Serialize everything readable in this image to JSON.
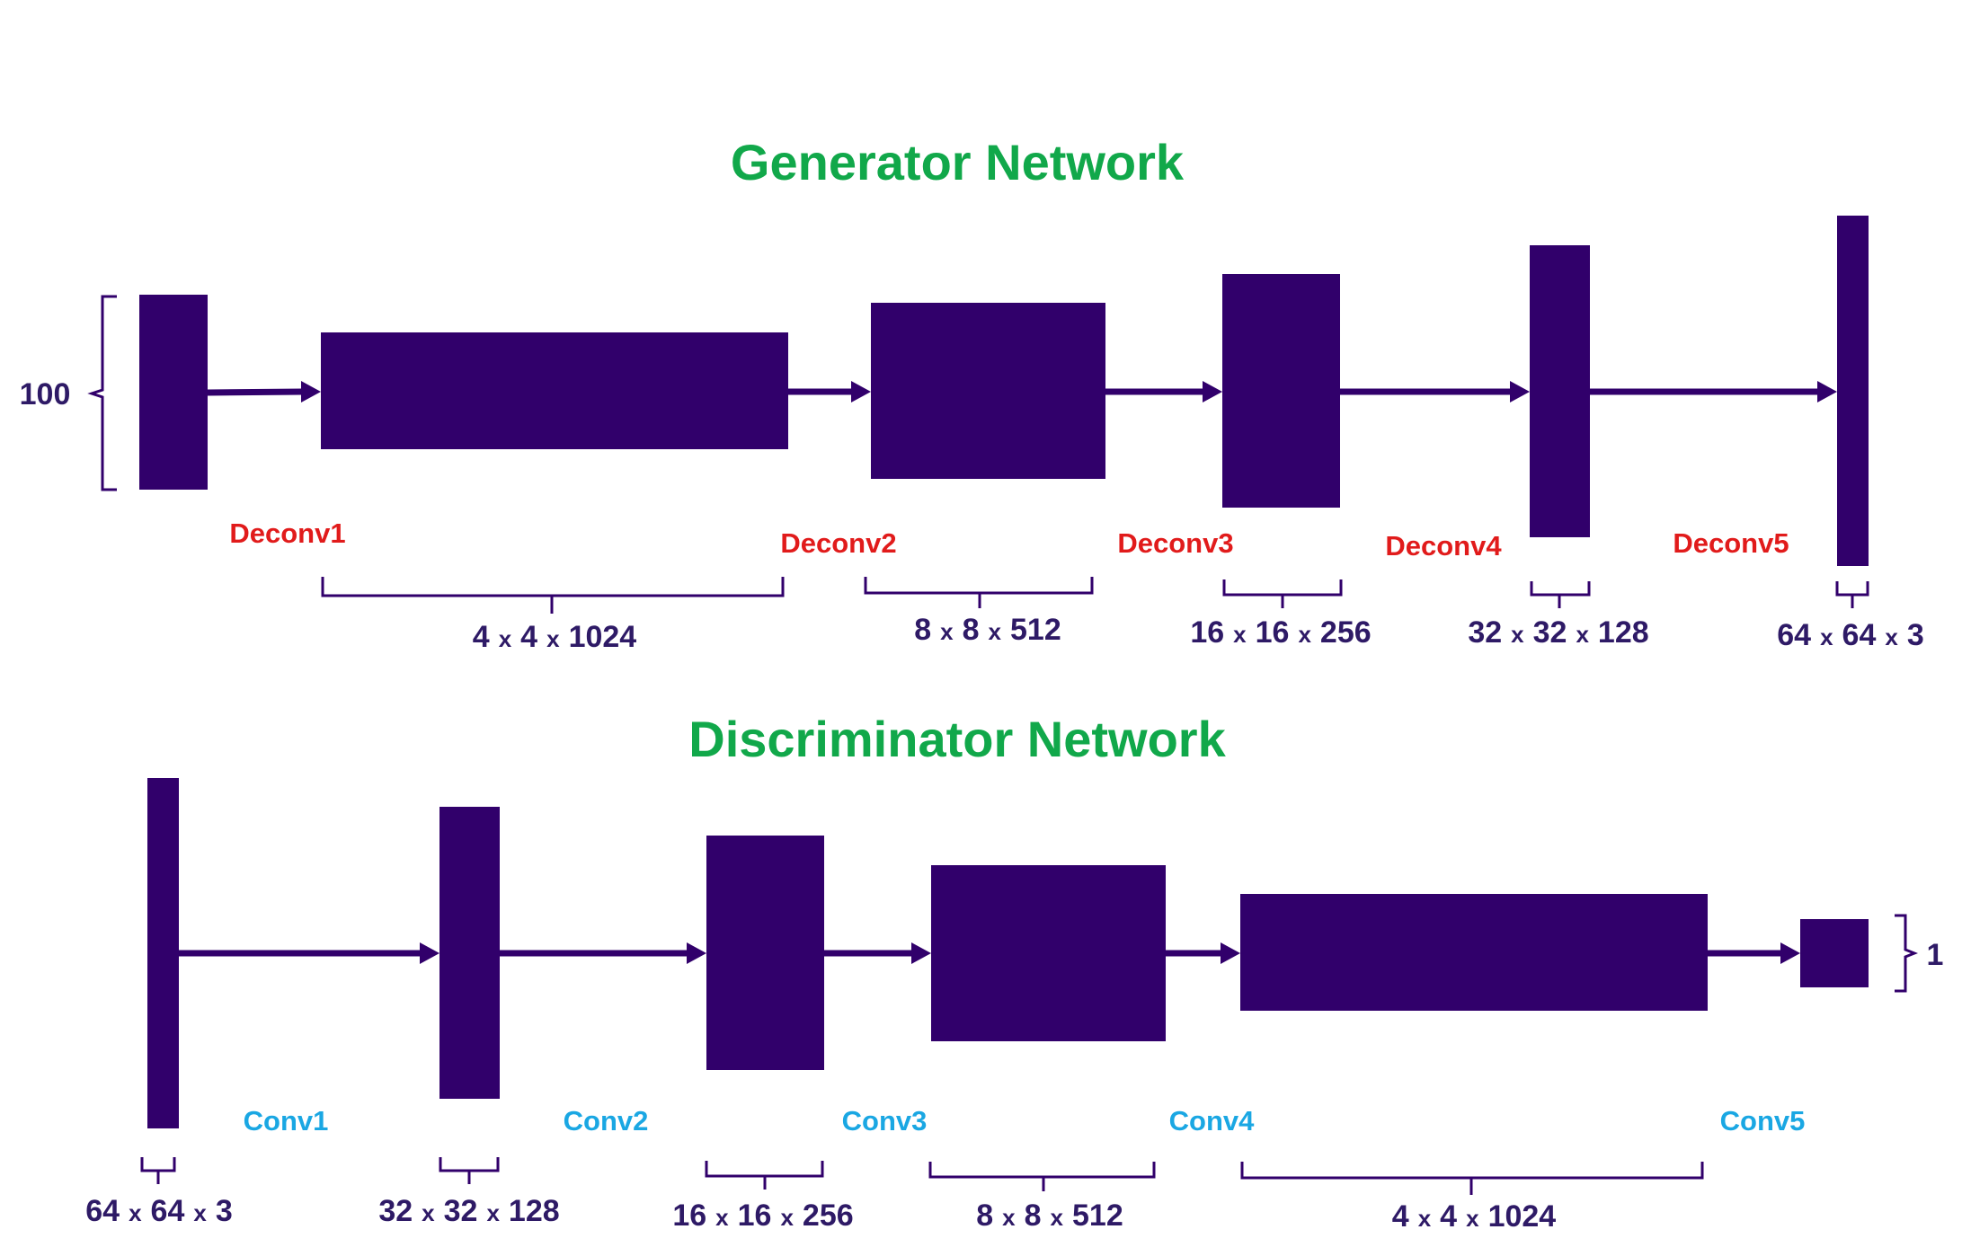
{
  "generator": {
    "title": "Generator Network",
    "input_label": "100",
    "layers": [
      {
        "name": "Deconv1"
      },
      {
        "name": "Deconv2"
      },
      {
        "name": "Deconv3"
      },
      {
        "name": "Deconv4"
      },
      {
        "name": "Deconv5"
      }
    ],
    "shapes": [
      {
        "a": "4",
        "b": "4",
        "c": "1024"
      },
      {
        "a": "8",
        "b": "8",
        "c": "512"
      },
      {
        "a": "16",
        "b": "16",
        "c": "256"
      },
      {
        "a": "32",
        "b": "32",
        "c": "128"
      },
      {
        "a": "64",
        "b": "64",
        "c": "3"
      }
    ]
  },
  "discriminator": {
    "title": "Discriminator Network",
    "output_label": "1",
    "layers": [
      {
        "name": "Conv1"
      },
      {
        "name": "Conv2"
      },
      {
        "name": "Conv3"
      },
      {
        "name": "Conv4"
      },
      {
        "name": "Conv5"
      }
    ],
    "shapes": [
      {
        "a": "64",
        "b": "64",
        "c": "3"
      },
      {
        "a": "32",
        "b": "32",
        "c": "128"
      },
      {
        "a": "16",
        "b": "16",
        "c": "256"
      },
      {
        "a": "8",
        "b": "8",
        "c": "512"
      },
      {
        "a": "4",
        "b": "4",
        "c": "1024"
      }
    ]
  },
  "dim_separator": "x",
  "colors": {
    "block": "#31006b",
    "title": "#11a84a",
    "generator_layer_label": "#e11b1b",
    "discriminator_layer_label": "#1aa7e3",
    "dimension_text": "#2e1a66"
  }
}
